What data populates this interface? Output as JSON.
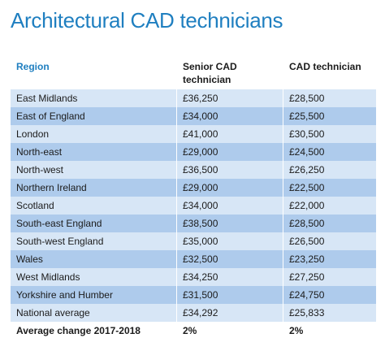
{
  "title": "Architectural CAD technicians",
  "columns": {
    "region": "Region",
    "senior": "Senior CAD technician",
    "cad": "CAD technician"
  },
  "rows": [
    {
      "region": "East Midlands",
      "senior": "£36,250",
      "cad": "£28,500"
    },
    {
      "region": "East of England",
      "senior": "£34,000",
      "cad": "£25,500"
    },
    {
      "region": "London",
      "senior": "£41,000",
      "cad": "£30,500"
    },
    {
      "region": "North-east",
      "senior": "£29,000",
      "cad": "£24,500"
    },
    {
      "region": "North-west",
      "senior": "£36,500",
      "cad": "£26,250"
    },
    {
      "region": "Northern Ireland",
      "senior": "£29,000",
      "cad": "£22,500"
    },
    {
      "region": "Scotland",
      "senior": "£34,000",
      "cad": "£22,000"
    },
    {
      "region": "South-east England",
      "senior": "£38,500",
      "cad": "£28,500"
    },
    {
      "region": "South-west England",
      "senior": "£35,000",
      "cad": "£26,500"
    },
    {
      "region": "Wales",
      "senior": "£32,500",
      "cad": "£23,250"
    },
    {
      "region": "West Midlands",
      "senior": "£34,250",
      "cad": "£27,250"
    },
    {
      "region": "Yorkshire and Humber",
      "senior": "£31,500",
      "cad": "£24,750"
    },
    {
      "region": "National average",
      "senior": "£34,292",
      "cad": "£25,833"
    }
  ],
  "footer": {
    "region": "Average change 2017-2018",
    "senior": "2%",
    "cad": "2%"
  },
  "colors": {
    "title": "#1f7fc0",
    "row_light": "#d7e6f6",
    "row_dark": "#aecbec"
  }
}
